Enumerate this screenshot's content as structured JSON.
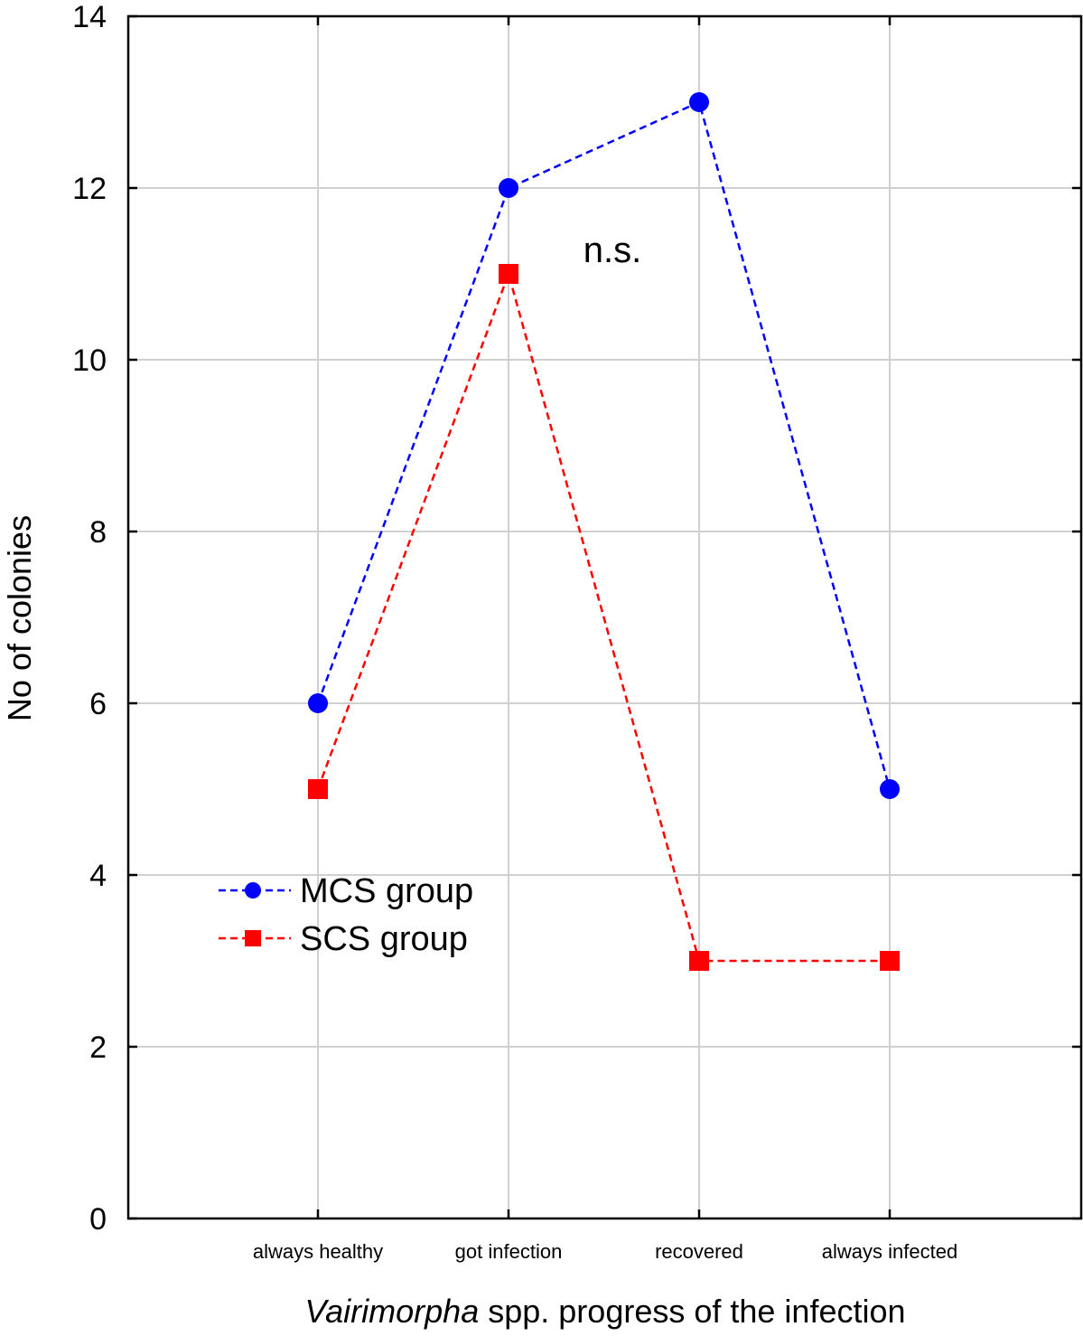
{
  "chart_data": {
    "type": "line",
    "categories": [
      "always healthy",
      "got infection",
      "recovered",
      "always infected"
    ],
    "series": [
      {
        "name": "MCS group",
        "values": [
          6,
          12,
          13,
          5
        ],
        "color": "#0000ff",
        "marker": "circle"
      },
      {
        "name": "SCS group",
        "values": [
          5,
          11,
          3,
          3
        ],
        "color": "#ff0000",
        "marker": "square"
      }
    ],
    "xlabel_italic": "Vairimorpha",
    "xlabel_rest": " spp. progress of the infection",
    "ylabel": "No of colonies",
    "ylim": [
      0,
      14
    ],
    "yticks": [
      0,
      2,
      4,
      6,
      8,
      10,
      12,
      14
    ],
    "annotation": "n.s.",
    "grid": true,
    "legend_position": "lower-left",
    "line_style": "dashed"
  }
}
